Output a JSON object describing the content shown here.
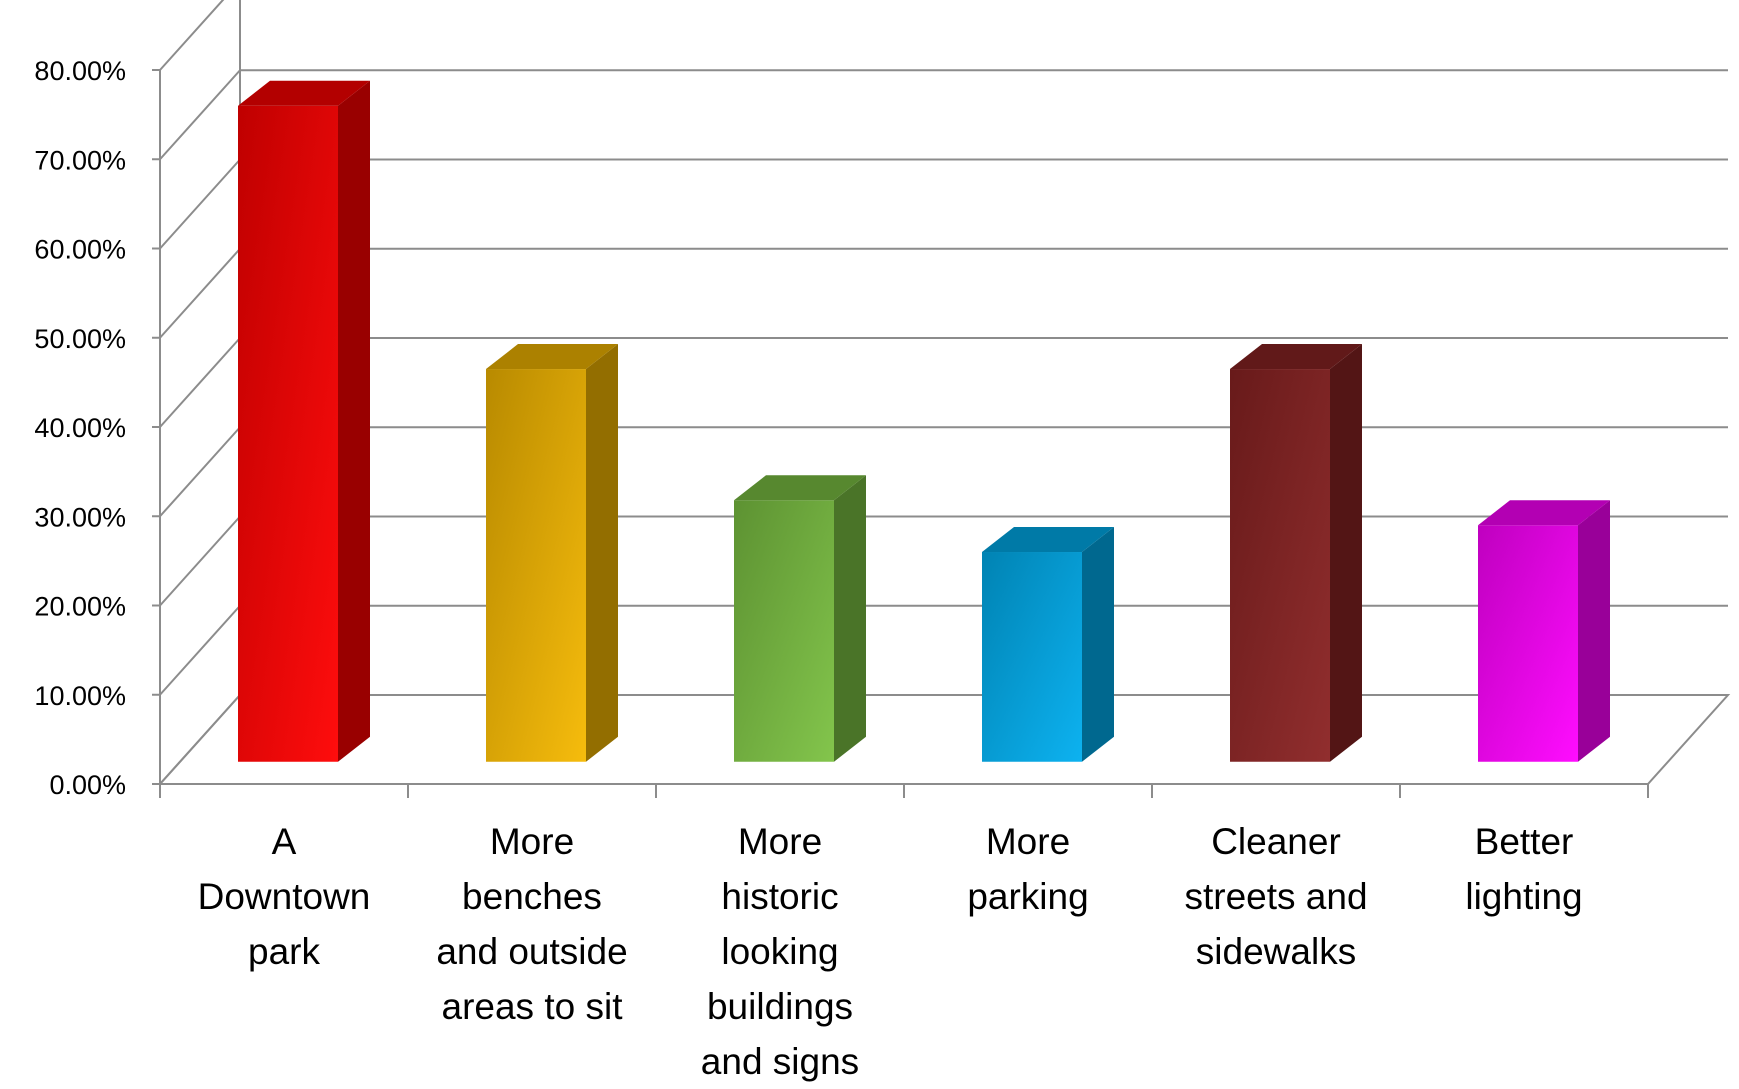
{
  "chart_data": {
    "type": "bar",
    "title": "",
    "xlabel": "",
    "ylabel": "",
    "ylim": [
      0,
      0.8
    ],
    "y_ticks": [
      "0.00%",
      "10.00%",
      "20.00%",
      "30.00%",
      "40.00%",
      "50.00%",
      "60.00%",
      "70.00%",
      "80.00%"
    ],
    "grid": true,
    "style": "3d-column",
    "categories": [
      [
        "A",
        "Downtown",
        "park"
      ],
      [
        "More",
        "benches",
        "and outside",
        "areas to sit"
      ],
      [
        "More",
        "historic",
        "looking",
        "buildings",
        "and signs"
      ],
      [
        "More",
        "parking"
      ],
      [
        "Cleaner",
        "streets and",
        "sidewalks"
      ],
      [
        "Better",
        "lighting"
      ]
    ],
    "values": [
      0.735,
      0.44,
      0.293,
      0.235,
      0.44,
      0.265
    ],
    "colors": [
      "#ff0000",
      "#f5b800",
      "#7cc243",
      "#00aeef",
      "#8b2323",
      "#ff00ff"
    ]
  }
}
